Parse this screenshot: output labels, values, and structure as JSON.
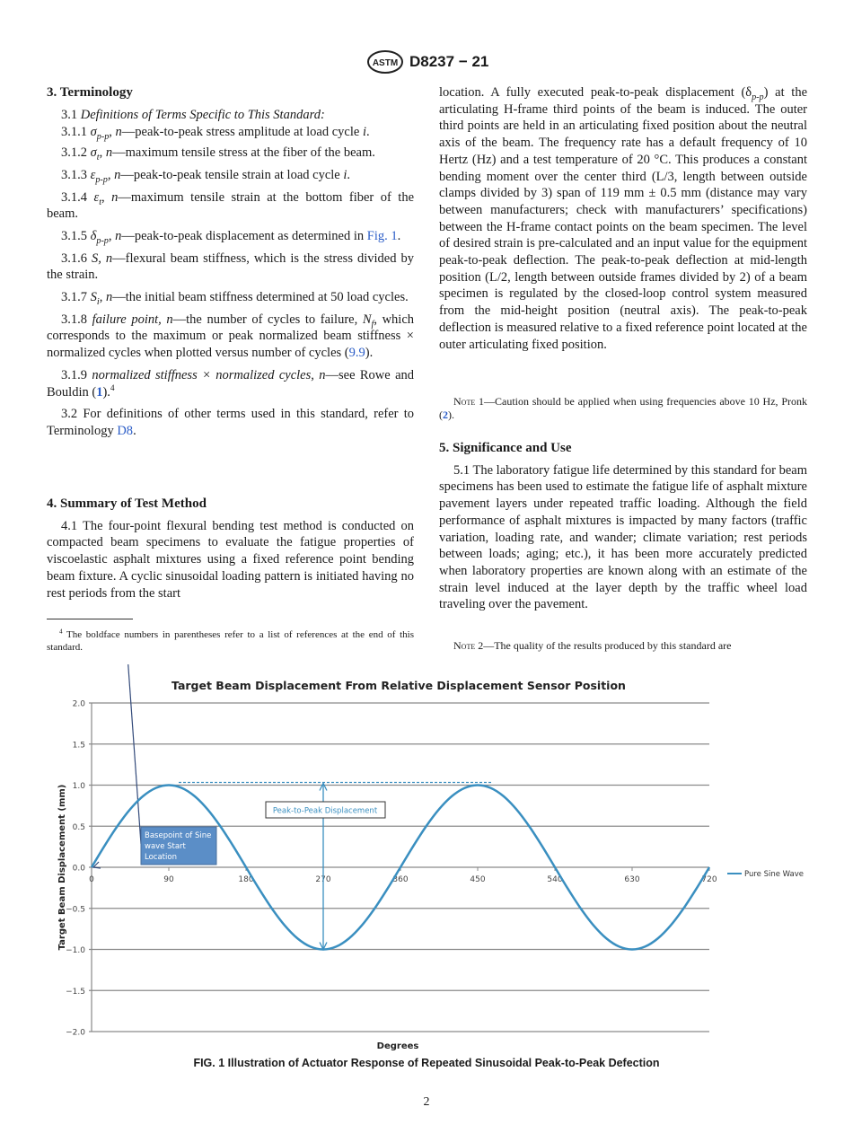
{
  "header": {
    "logo_text": "ASTM",
    "doc_id": "D8237 − 21"
  },
  "left": {
    "terminology_heading": "3. Terminology",
    "terms": [
      [
        [
          "3.1 ",
          ""
        ],
        [
          "Definitions of Terms Specific to This Standard:",
          "i"
        ]
      ],
      [
        [
          "3.1.1 ",
          ""
        ],
        [
          "σ",
          "i"
        ],
        [
          "p-p",
          "isub"
        ],
        [
          ", ",
          ""
        ],
        [
          "n",
          "i"
        ],
        [
          "—peak-to-peak stress amplitude at load cycle ",
          ""
        ],
        [
          "i",
          "i"
        ],
        [
          ".",
          ""
        ]
      ],
      [
        [
          "3.1.2 ",
          ""
        ],
        [
          "σ",
          "i"
        ],
        [
          "t",
          "isub"
        ],
        [
          ", ",
          ""
        ],
        [
          "n",
          "i"
        ],
        [
          "—maximum tensile stress at the fiber of the beam.",
          ""
        ]
      ],
      [
        [
          "3.1.3 ",
          ""
        ],
        [
          "ε",
          "i"
        ],
        [
          "p-p",
          "isub"
        ],
        [
          ", ",
          ""
        ],
        [
          "n",
          "i"
        ],
        [
          "—peak-to-peak tensile strain at load cycle ",
          ""
        ],
        [
          "i",
          "i"
        ],
        [
          ".",
          ""
        ]
      ],
      [
        [
          "3.1.4 ",
          ""
        ],
        [
          "ε",
          "i"
        ],
        [
          "t",
          "isub"
        ],
        [
          ", ",
          ""
        ],
        [
          "n",
          "i"
        ],
        [
          "—maximum tensile strain at the bottom fiber of the beam.",
          ""
        ]
      ],
      [
        [
          "3.1.5 ",
          ""
        ],
        [
          "δ",
          "i"
        ],
        [
          "p-p",
          "isub"
        ],
        [
          ", ",
          ""
        ],
        [
          "n",
          "i"
        ],
        [
          "—peak-to-peak displacement as determined in ",
          ""
        ],
        [
          "Fig. 1",
          "link"
        ],
        [
          ".",
          ""
        ]
      ],
      [
        [
          "3.1.6 ",
          ""
        ],
        [
          "S, n",
          "i"
        ],
        [
          "—flexural beam stiffness, which is the stress divided by the strain.",
          ""
        ]
      ],
      [
        [
          "3.1.7 ",
          ""
        ],
        [
          "S",
          "i"
        ],
        [
          "i",
          "isub"
        ],
        [
          ", ",
          ""
        ],
        [
          "n",
          "i"
        ],
        [
          "—the initial beam stiffness determined at 50 load cycles.",
          ""
        ]
      ],
      [
        [
          "3.1.8 ",
          ""
        ],
        [
          "failure point, n",
          "i"
        ],
        [
          "—the number of cycles to failure, ",
          ""
        ],
        [
          "N",
          "i"
        ],
        [
          "f",
          "isub"
        ],
        [
          ", which corresponds to the maximum or peak normalized beam stiffness × normalized cycles when plotted versus number of cycles (",
          ""
        ],
        [
          "9.9",
          "link"
        ],
        [
          ").",
          ""
        ]
      ],
      [
        [
          "3.1.9 ",
          ""
        ],
        [
          "normalized stiffness × normalized cycles, n",
          "i"
        ],
        [
          "—see Rowe and Bouldin (",
          ""
        ],
        [
          "1",
          "blink"
        ],
        [
          ").",
          ""
        ],
        [
          "4",
          "sup"
        ]
      ],
      [
        [
          "3.2 For definitions of other terms used in this standard, refer to Terminology ",
          ""
        ],
        [
          "D8",
          "link"
        ],
        [
          ".",
          ""
        ]
      ]
    ],
    "summary_heading": "4. Summary of Test Method",
    "summary_para": [
      [
        "4.1 The four-point flexural bending test method is conducted on compacted beam specimens to evaluate the fatigue properties of viscoelastic asphalt mixtures using a fixed reference point bending beam fixture. A cyclic sinusoidal loading pattern is initiated having no rest periods from the start",
        ""
      ]
    ],
    "footnote": [
      [
        "4",
        "sup"
      ],
      [
        " The boldface numbers in parentheses refer to a list of references at the end of this standard.",
        ""
      ]
    ]
  },
  "right": {
    "cont_para": [
      [
        "location. A fully executed peak-to-peak displacement (δ",
        ""
      ],
      [
        "p-p",
        "isub"
      ],
      [
        ") at the articulating H-frame third points of the beam is induced. The outer third points are held in an articulating fixed position about the neutral axis of the beam. The frequency rate has a default frequency of 10 Hertz (Hz) and a test temperature of 20 °C. This produces a constant bending moment over the center third (L/3, length between outside clamps divided by 3) span of 119 mm ± 0.5 mm (distance may vary between manufacturers; check with manufacturers’ specifications) between the H-frame contact points on the beam specimen. The level of desired strain is pre-calculated and an input value for the equipment peak-to-peak deflection. The peak-to-peak deflection at mid-length position (L/2, length between outside frames divided by 2) of a beam specimen is regulated by the closed-loop control system measured from the mid-height position (neutral axis). The peak-to-peak deflection is measured relative to a fixed reference point located at the outer articulating fixed position.",
        ""
      ]
    ],
    "note1": [
      [
        "Note",
        "sc"
      ],
      [
        " 1—Caution should be applied when using frequencies above 10 Hz, Pronk (",
        ""
      ],
      [
        "2",
        "blink"
      ],
      [
        ").",
        ""
      ]
    ],
    "significance_heading": "5. Significance and Use",
    "significance_para": [
      [
        "5.1 The laboratory fatigue life determined by this standard for beam specimens has been used to estimate the fatigue life of asphalt mixture pavement layers under repeated traffic loading. Although the field performance of asphalt mixtures is impacted by many factors (traffic variation, loading rate, and wander; climate variation; rest periods between loads; aging; etc.), it has been more accurately predicted when laboratory properties are known along with an estimate of the strain level induced at the layer depth by the traffic wheel load traveling over the pavement.",
        ""
      ]
    ],
    "note2": [
      [
        "Note",
        "sc"
      ],
      [
        " 2—The quality of the results produced by this standard are",
        ""
      ]
    ]
  },
  "chart_data": {
    "type": "line",
    "title": "Target Beam Displacement From Relative Displacement Sensor Position",
    "xlabel": "Degrees",
    "ylabel": "Target Beam Displacement (mm)",
    "xlim": [
      0,
      720
    ],
    "ylim": [
      -2.0,
      2.0
    ],
    "xticks": [
      "0",
      "90",
      "180",
      "270",
      "360",
      "450",
      "540",
      "630",
      "720"
    ],
    "yticks": [
      "2.0",
      "1.5",
      "1.0",
      "0.5",
      "0.0",
      "−0.5",
      "−1.0",
      "−1.5",
      "−2.0"
    ],
    "grid": "horizontal",
    "legend": "right",
    "series": [
      {
        "name": "Pure Sine Wave",
        "color": "#3a8fc0",
        "x": [
          0,
          15,
          30,
          45,
          60,
          75,
          90,
          105,
          120,
          135,
          150,
          165,
          180,
          195,
          210,
          225,
          240,
          255,
          270,
          285,
          300,
          315,
          330,
          345,
          360,
          375,
          390,
          405,
          420,
          435,
          450,
          465,
          480,
          495,
          510,
          525,
          540,
          555,
          570,
          585,
          600,
          615,
          630,
          645,
          660,
          675,
          690,
          705,
          720
        ],
        "y": [
          0,
          0.259,
          0.5,
          0.707,
          0.866,
          0.966,
          1,
          0.966,
          0.866,
          0.707,
          0.5,
          0.259,
          0,
          -0.259,
          -0.5,
          -0.707,
          -0.866,
          -0.966,
          -1,
          -0.966,
          -0.866,
          -0.707,
          -0.5,
          -0.259,
          0,
          0.259,
          0.5,
          0.707,
          0.866,
          0.966,
          1,
          0.966,
          0.866,
          0.707,
          0.5,
          0.259,
          0,
          -0.259,
          -0.5,
          -0.707,
          -0.866,
          -0.966,
          -1,
          -0.966,
          -0.866,
          -0.707,
          -0.5,
          -0.259,
          0
        ]
      }
    ],
    "annotations": {
      "peak_to_peak": "Peak-to-Peak Displacement",
      "basepoint": [
        "Basepoint of Sine",
        "wave Start",
        "Location"
      ],
      "peak_line_value": 1.0,
      "arrow_x": 270,
      "arrow_range": [
        -1.0,
        1.0
      ]
    }
  },
  "caption": "FIG. 1 Illustration of Actuator Response of Repeated Sinusoidal Peak-to-Peak Defection",
  "page_number": "2"
}
